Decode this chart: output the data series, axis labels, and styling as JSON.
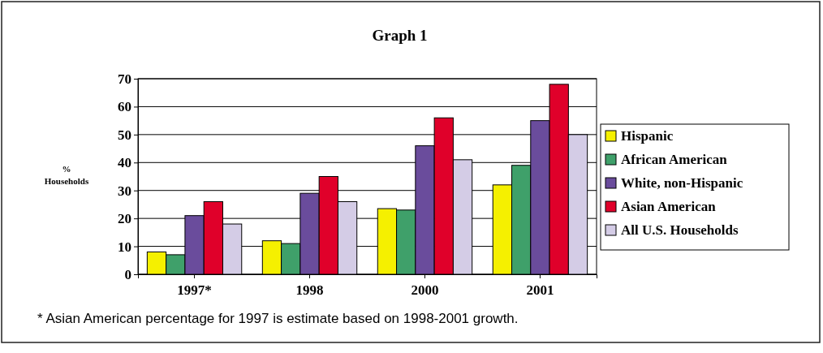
{
  "chart_data": {
    "type": "bar",
    "title": "Graph 1",
    "ylabel": "% Households",
    "categories": [
      "1997*",
      "1998",
      "2000",
      "2001"
    ],
    "series": [
      {
        "name": "Hispanic",
        "color": "#f5f000",
        "values": [
          8,
          12,
          23.5,
          32
        ]
      },
      {
        "name": "African American",
        "color": "#3fa06a",
        "values": [
          7,
          11,
          23,
          39
        ]
      },
      {
        "name": "White, non-Hispanic",
        "color": "#6a4c9c",
        "values": [
          21,
          29,
          46,
          55
        ]
      },
      {
        "name": "Asian American",
        "color": "#e0002a",
        "values": [
          26,
          35,
          56,
          68
        ]
      },
      {
        "name": "All U.S. Households",
        "color": "#d4cce6",
        "values": [
          18,
          26,
          41,
          50
        ]
      }
    ],
    "ylim": [
      0,
      70
    ],
    "yticks": [
      0,
      10,
      20,
      30,
      40,
      50,
      60,
      70
    ],
    "grid": "y",
    "legend": "right",
    "annotations": [
      "* Asian American percentage for 1997 is estimate based on 1998-2001 growth."
    ]
  }
}
